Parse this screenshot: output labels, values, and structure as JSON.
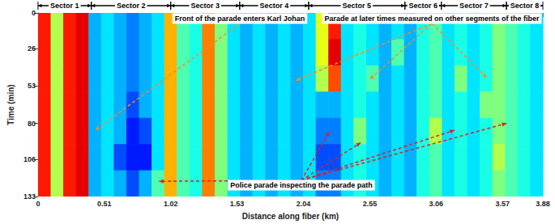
{
  "chart_data": {
    "type": "heatmap",
    "x_label": "Distance along fiber (km)",
    "y_label": "Time (min)",
    "xlim": [
      0,
      3.88
    ],
    "xticks": [
      0,
      0.51,
      1.02,
      1.53,
      2.04,
      2.55,
      3.06,
      3.57,
      3.88
    ],
    "ylim": [
      133,
      0
    ],
    "yticks": [
      0,
      26,
      53,
      80,
      106,
      133
    ],
    "grid": false,
    "x_bins": [
      0,
      0.097,
      0.194,
      0.291,
      0.388,
      0.485,
      0.582,
      0.679,
      0.776,
      0.873,
      0.97,
      1.067,
      1.164,
      1.261,
      1.358,
      1.455,
      1.552,
      1.649,
      1.746,
      1.843,
      1.94,
      2.037,
      2.134,
      2.231,
      2.328,
      2.425,
      2.522,
      2.619,
      2.716,
      2.813,
      2.91,
      3.007,
      3.104,
      3.201,
      3.298,
      3.395,
      3.492,
      3.589,
      3.686,
      3.783,
      3.88
    ],
    "y_bins": [
      0,
      19,
      38,
      57,
      76,
      95,
      114,
      133
    ],
    "cells": [
      [
        0.85,
        0.55,
        0.85,
        0.9,
        0.3,
        0.35,
        0.3,
        0.25,
        0.3,
        0.35,
        0.7,
        0.45,
        0.4,
        0.75,
        0.5,
        0.35,
        0.3,
        0.35,
        0.3,
        0.35,
        0.3,
        0.35,
        0.6,
        0.85,
        0.35,
        0.4,
        0.35,
        0.3,
        0.35,
        0.3,
        0.4,
        0.45,
        0.35,
        0.4,
        0.35,
        0.4,
        0.5,
        0.45,
        0.4,
        0.35
      ],
      [
        0.85,
        0.55,
        0.85,
        0.9,
        0.3,
        0.35,
        0.3,
        0.25,
        0.3,
        0.35,
        0.7,
        0.45,
        0.4,
        0.75,
        0.5,
        0.35,
        0.3,
        0.35,
        0.3,
        0.35,
        0.3,
        0.35,
        0.6,
        0.9,
        0.35,
        0.4,
        0.35,
        0.3,
        0.45,
        0.3,
        0.4,
        0.45,
        0.35,
        0.4,
        0.35,
        0.4,
        0.5,
        0.45,
        0.4,
        0.35
      ],
      [
        0.85,
        0.55,
        0.85,
        0.9,
        0.3,
        0.35,
        0.3,
        0.25,
        0.3,
        0.35,
        0.7,
        0.45,
        0.4,
        0.75,
        0.5,
        0.35,
        0.3,
        0.35,
        0.3,
        0.35,
        0.3,
        0.35,
        0.55,
        0.8,
        0.35,
        0.4,
        0.45,
        0.3,
        0.35,
        0.3,
        0.4,
        0.45,
        0.35,
        0.5,
        0.35,
        0.4,
        0.5,
        0.45,
        0.4,
        0.35
      ],
      [
        0.85,
        0.55,
        0.85,
        0.9,
        0.3,
        0.35,
        0.3,
        0.2,
        0.3,
        0.35,
        0.7,
        0.45,
        0.4,
        0.75,
        0.5,
        0.35,
        0.3,
        0.35,
        0.3,
        0.35,
        0.3,
        0.35,
        0.3,
        0.3,
        0.35,
        0.4,
        0.35,
        0.3,
        0.35,
        0.3,
        0.4,
        0.45,
        0.35,
        0.4,
        0.35,
        0.5,
        0.5,
        0.45,
        0.4,
        0.35
      ],
      [
        0.85,
        0.55,
        0.85,
        0.9,
        0.3,
        0.35,
        0.3,
        0.15,
        0.2,
        0.35,
        0.7,
        0.45,
        0.4,
        0.75,
        0.5,
        0.35,
        0.3,
        0.35,
        0.3,
        0.35,
        0.3,
        0.35,
        0.25,
        0.25,
        0.35,
        0.5,
        0.35,
        0.3,
        0.35,
        0.3,
        0.4,
        0.55,
        0.35,
        0.4,
        0.35,
        0.4,
        0.5,
        0.45,
        0.4,
        0.35
      ],
      [
        0.85,
        0.55,
        0.85,
        0.9,
        0.3,
        0.35,
        0.2,
        0.15,
        0.15,
        0.35,
        0.7,
        0.45,
        0.4,
        0.75,
        0.5,
        0.35,
        0.3,
        0.35,
        0.3,
        0.35,
        0.3,
        0.35,
        0.2,
        0.2,
        0.35,
        0.4,
        0.35,
        0.3,
        0.35,
        0.3,
        0.4,
        0.45,
        0.35,
        0.4,
        0.35,
        0.4,
        0.55,
        0.45,
        0.4,
        0.35
      ],
      [
        0.85,
        0.55,
        0.85,
        0.9,
        0.3,
        0.35,
        0.3,
        0.2,
        0.3,
        0.45,
        0.7,
        0.45,
        0.4,
        0.75,
        0.5,
        0.35,
        0.3,
        0.35,
        0.3,
        0.35,
        0.3,
        0.35,
        0.25,
        0.25,
        0.35,
        0.4,
        0.35,
        0.3,
        0.35,
        0.3,
        0.4,
        0.45,
        0.35,
        0.4,
        0.35,
        0.4,
        0.5,
        0.45,
        0.4,
        0.35
      ]
    ],
    "color_range": [
      0,
      1
    ],
    "colormap": [
      "#00007f",
      "#0000ff",
      "#007fff",
      "#00ffff",
      "#7fff7f",
      "#ffff00",
      "#ff7f00",
      "#ff0000",
      "#7f0000"
    ],
    "sectors": [
      {
        "label": "Sector 1",
        "range": [
          0,
          0.41
        ]
      },
      {
        "label": "Sector 2",
        "range": [
          0.41,
          1.02
        ]
      },
      {
        "label": "Sector 3",
        "range": [
          1.02,
          1.55
        ]
      },
      {
        "label": "Sector 4",
        "range": [
          1.55,
          2.08
        ]
      },
      {
        "label": "Sector 5",
        "range": [
          2.08,
          2.82
        ]
      },
      {
        "label": "Sector 6",
        "range": [
          2.82,
          3.1
        ]
      },
      {
        "label": "Sector 7",
        "range": [
          3.1,
          3.6
        ]
      },
      {
        "label": "Sector 8",
        "range": [
          3.6,
          3.88
        ]
      }
    ],
    "annotations": [
      {
        "text": "Front of the parade enters Karl Johan",
        "color": "#f28c28",
        "line_style": "dashed",
        "targets": [
          [
            0.44,
            85
          ]
        ]
      },
      {
        "text": "Parade at later times measured on other segments of the fiber",
        "color": "#f28c28",
        "line_style": "dashed",
        "targets": [
          [
            1.98,
            49
          ],
          [
            2.55,
            48
          ],
          [
            3.45,
            47
          ]
        ]
      },
      {
        "text": "Police parade inspecting the parade path",
        "color": "#e02020",
        "line_style": "dashed",
        "targets": [
          [
            0.93,
            122
          ],
          [
            2.24,
            86
          ],
          [
            2.48,
            94
          ],
          [
            3.2,
            85
          ],
          [
            3.6,
            80
          ]
        ]
      }
    ]
  }
}
